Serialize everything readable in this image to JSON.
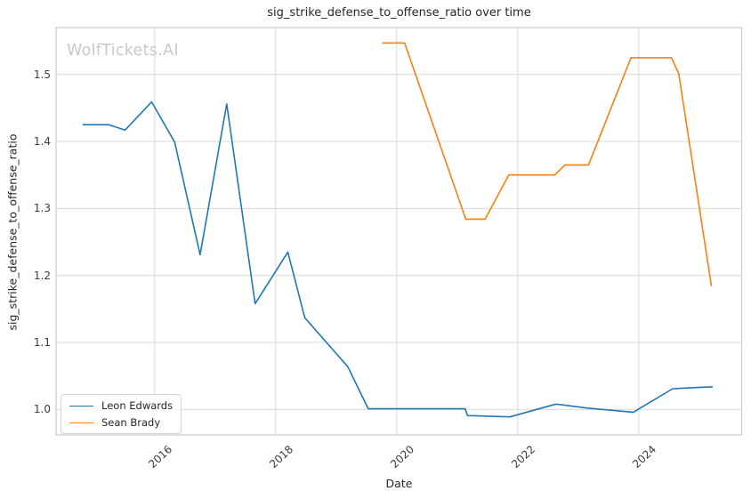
{
  "watermark": "WolfTickets.AI",
  "colors": {
    "leon_edwards_line": "#1f77b4",
    "sean_brady_line": "#ff7f0e",
    "grid": "#d9d9d9",
    "spine": "#cccccc",
    "tick_text": "#3b3b3b",
    "text": "#262626",
    "watermark": "#c9c9c9",
    "background": "#ffffff"
  },
  "legend": {
    "position": "lower left",
    "items": [
      {
        "label": "Leon Edwards",
        "color": "#1f77b4"
      },
      {
        "label": "Sean Brady",
        "color": "#ff7f0e"
      }
    ]
  },
  "chart_data": {
    "type": "line",
    "title": "sig_strike_defense_to_offense_ratio over time",
    "xlabel": "Date",
    "ylabel": "sig_strike_defense_to_offense_ratio",
    "x_ticks": [
      "2016",
      "2018",
      "2020",
      "2022",
      "2024"
    ],
    "y_ticks": [
      "1.0",
      "1.1",
      "1.2",
      "1.3",
      "1.4",
      "1.5"
    ],
    "xlim": [
      2014.37,
      2025.7
    ],
    "ylim": [
      0.962,
      1.57
    ],
    "grid": true,
    "legend_position": "lower left",
    "series": [
      {
        "name": "Leon Edwards",
        "color": "#1f77b4",
        "x": [
          2014.81,
          2015.24,
          2015.51,
          2015.95,
          2016.33,
          2016.75,
          2017.19,
          2017.66,
          2018.2,
          2018.48,
          2019.19,
          2019.53,
          2021.13,
          2021.17,
          2021.87,
          2022.63,
          2023.17,
          2023.91,
          2024.56,
          2025.22
        ],
        "y": [
          1.425,
          1.425,
          1.417,
          1.459,
          1.399,
          1.231,
          1.456,
          1.158,
          1.235,
          1.137,
          1.064,
          1.001,
          1.001,
          0.991,
          0.989,
          1.008,
          1.002,
          0.996,
          1.031,
          1.034
        ]
      },
      {
        "name": "Sean Brady",
        "color": "#ff7f0e",
        "x": [
          2019.76,
          2020.13,
          2021.14,
          2021.46,
          2021.85,
          2022.61,
          2022.78,
          2023.17,
          2023.87,
          2024.54,
          2024.66,
          2025.2
        ],
        "y": [
          1.547,
          1.547,
          1.284,
          1.284,
          1.35,
          1.35,
          1.365,
          1.365,
          1.525,
          1.525,
          1.501,
          1.184
        ]
      }
    ]
  }
}
